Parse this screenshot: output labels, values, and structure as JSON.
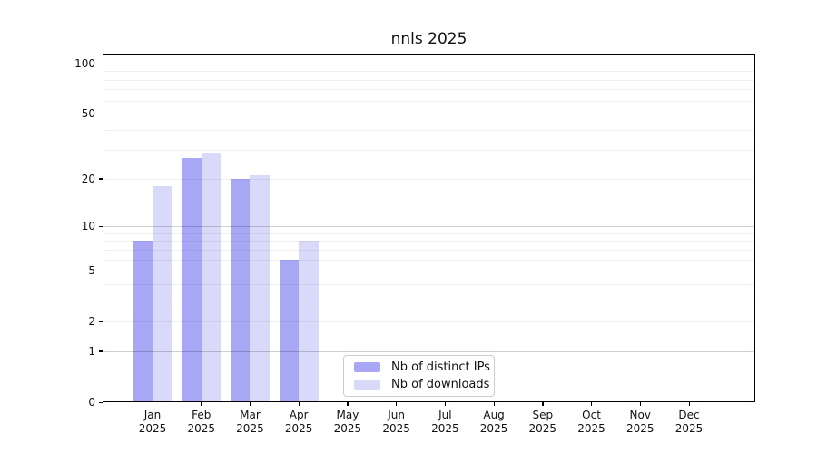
{
  "title": "nnls 2025",
  "chart_data": {
    "type": "bar",
    "title": "nnls 2025",
    "scale": "log1p",
    "categories": [
      "Jan",
      "Feb",
      "Mar",
      "Apr",
      "May",
      "Jun",
      "Jul",
      "Aug",
      "Sep",
      "Oct",
      "Nov",
      "Dec"
    ],
    "year_label": "2025",
    "series": [
      {
        "name": "Nb of distinct IPs",
        "color": "#a7a7f6",
        "values": [
          8,
          27,
          20,
          6,
          0,
          0,
          0,
          0,
          0,
          0,
          0,
          0
        ]
      },
      {
        "name": "Nb of downloads",
        "color": "#d9d9fa",
        "values": [
          18,
          29,
          21,
          8,
          0,
          0,
          0,
          0,
          0,
          0,
          0,
          0
        ]
      }
    ],
    "y_ticks": [
      0,
      1,
      2,
      5,
      10,
      20,
      50,
      100
    ],
    "y_major_gridlines": [
      1,
      10,
      100
    ],
    "y_minor_gridlines": [
      2,
      3,
      4,
      5,
      6,
      7,
      8,
      9,
      20,
      30,
      40,
      50,
      60,
      70,
      80,
      90
    ],
    "ylim": [
      0,
      114
    ],
    "grid": true,
    "legend_position": "lower-center"
  },
  "colors": {
    "major_grid": "#c9c9c9",
    "minor_grid": "#f0f0f0",
    "spine": "#000000",
    "background": "#ffffff"
  }
}
